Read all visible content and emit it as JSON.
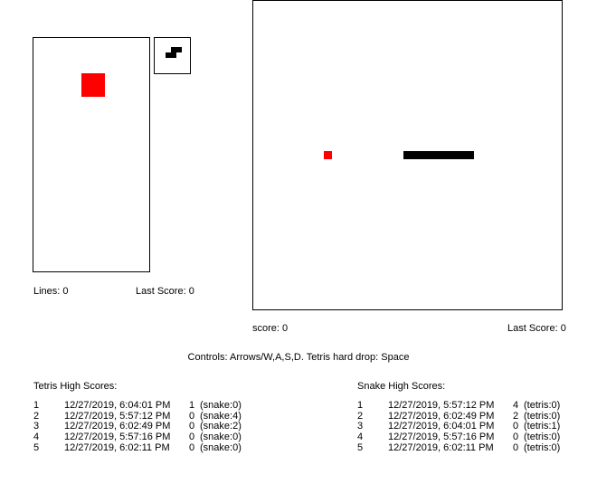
{
  "tetris": {
    "lines_label": "Lines: 0",
    "last_score_label": "Last Score: 0",
    "colors": {
      "active_piece": "#ff0000",
      "preview_piece": "#000000"
    },
    "high_scores_title": "Tetris High Scores:",
    "high_scores": [
      {
        "rank": "1",
        "date": "12/27/2019, 6:04:01 PM",
        "score": "1",
        "other": "(snake:0)"
      },
      {
        "rank": "2",
        "date": "12/27/2019, 5:57:12 PM",
        "score": "0",
        "other": "(snake:4)"
      },
      {
        "rank": "3",
        "date": "12/27/2019, 6:02:49 PM",
        "score": "0",
        "other": "(snake:2)"
      },
      {
        "rank": "4",
        "date": "12/27/2019, 5:57:16 PM",
        "score": "0",
        "other": "(snake:0)"
      },
      {
        "rank": "5",
        "date": "12/27/2019, 6:02:11 PM",
        "score": "0",
        "other": "(snake:0)"
      }
    ]
  },
  "snake": {
    "score_label": "score: 0",
    "last_score_label": "Last Score: 0",
    "colors": {
      "food": "#ff0000",
      "body": "#000000"
    },
    "high_scores_title": "Snake High Scores:",
    "high_scores": [
      {
        "rank": "1",
        "date": "12/27/2019, 5:57:12 PM",
        "score": "4",
        "other": "(tetris:0)"
      },
      {
        "rank": "2",
        "date": "12/27/2019, 6:02:49 PM",
        "score": "2",
        "other": "(tetris:0)"
      },
      {
        "rank": "3",
        "date": "12/27/2019, 6:04:01 PM",
        "score": "0",
        "other": "(tetris:1)"
      },
      {
        "rank": "4",
        "date": "12/27/2019, 5:57:16 PM",
        "score": "0",
        "other": "(tetris:0)"
      },
      {
        "rank": "5",
        "date": "12/27/2019, 6:02:11 PM",
        "score": "0",
        "other": "(tetris:0)"
      }
    ]
  },
  "controls_text": "Controls: Arrows/W,A,S,D. Tetris hard drop: Space"
}
